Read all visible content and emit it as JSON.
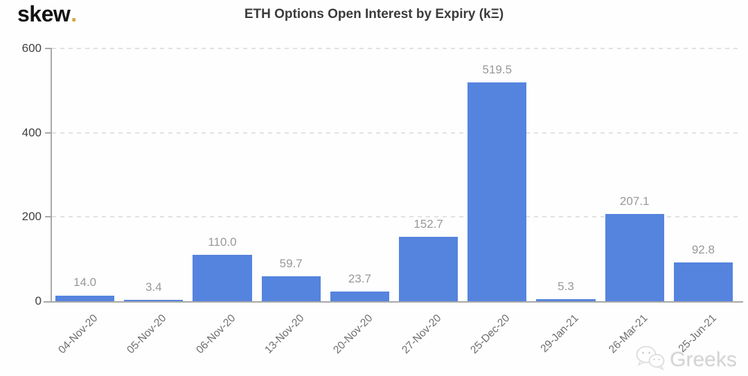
{
  "logo": {
    "text": "skew",
    "dot": "."
  },
  "header": {
    "title": "ETH Options Open Interest by Expiry (kΞ)"
  },
  "watermark": {
    "text": "Greeks",
    "icon": "wechat-icon"
  },
  "chart_data": {
    "type": "bar",
    "title": "ETH Options Open Interest by Expiry (kΞ)",
    "categories": [
      "04-Nov-20",
      "05-Nov-20",
      "06-Nov-20",
      "13-Nov-20",
      "20-Nov-20",
      "27-Nov-20",
      "25-Dec-20",
      "29-Jan-21",
      "26-Mar-21",
      "25-Jun-21"
    ],
    "values": [
      14.0,
      3.4,
      110.0,
      59.7,
      23.7,
      152.7,
      519.5,
      5.3,
      207.1,
      92.8
    ],
    "value_labels": [
      "14.0",
      "3.4",
      "110.0",
      "59.7",
      "23.7",
      "152.7",
      "519.5",
      "5.3",
      "207.1",
      "92.8"
    ],
    "xlabel": "",
    "ylabel": "",
    "ylim": [
      0,
      600
    ],
    "yticks": [
      0,
      200,
      400,
      600
    ],
    "grid": "horizontal-dashed",
    "legend": "none",
    "colors": {
      "bar": "#5584de",
      "value_label": "#989898",
      "x_tick_label": "#6e6e6e",
      "y_tick_label": "#3f3f3f",
      "grid_line": "#e2e2e2",
      "axis_line": "#a8a8a8",
      "logo_dot": "#d2a63c",
      "title": "#3b3b3b",
      "watermark": "#d4d4d4"
    }
  }
}
